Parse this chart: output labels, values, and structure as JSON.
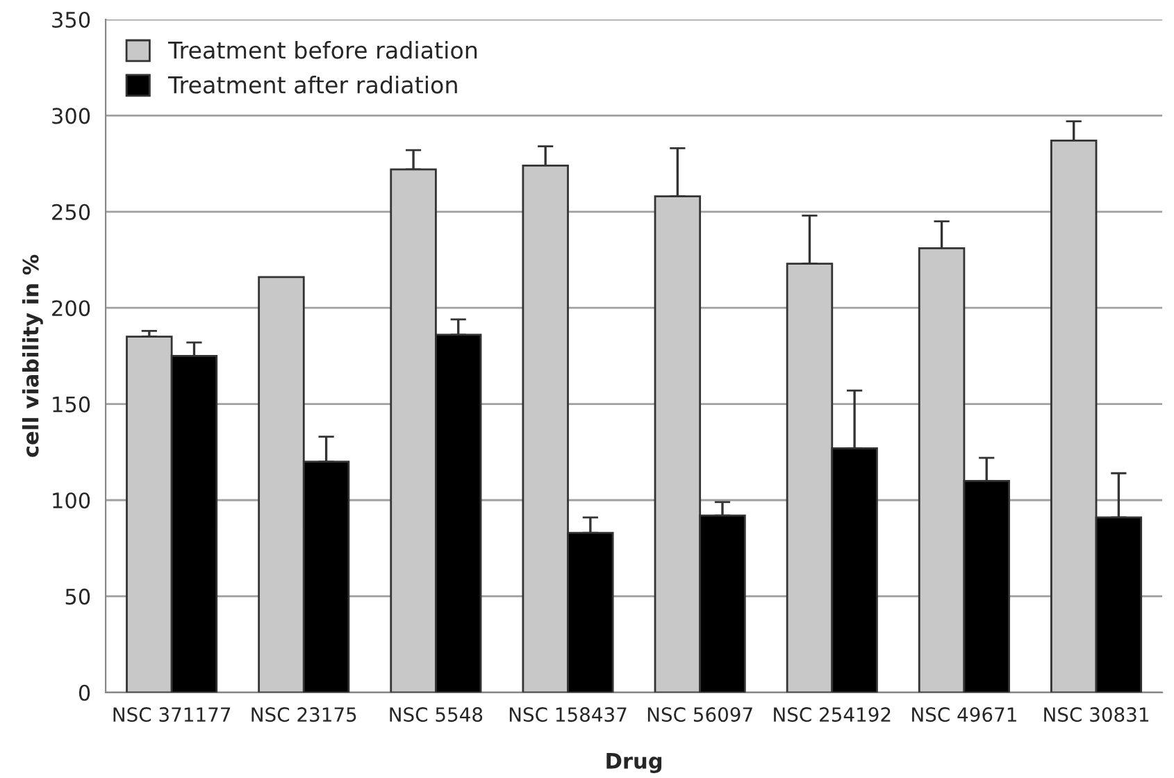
{
  "chart_data": {
    "type": "bar",
    "xlabel": "Drug",
    "ylabel": "cell viability in %",
    "categories": [
      "NSC 371177",
      "NSC 23175",
      "NSC 5548",
      "NSC 158437",
      "NSC 56097",
      "NSC 254192",
      "NSC 49671",
      "NSC 30831"
    ],
    "series": [
      {
        "name": "Treatment before radiation",
        "color": "#c8c8c8",
        "values": [
          185,
          216,
          272,
          274,
          258,
          223,
          231,
          287
        ],
        "errors": [
          [
            185,
            188
          ],
          null,
          [
            272,
            282
          ],
          [
            274,
            284
          ],
          [
            258,
            283
          ],
          [
            223,
            248
          ],
          [
            231,
            245
          ],
          [
            287,
            297
          ]
        ]
      },
      {
        "name": "Treatment after radiation",
        "color": "#000000",
        "values": [
          175,
          120,
          186,
          83,
          92,
          127,
          110,
          91
        ],
        "errors": [
          [
            175,
            182
          ],
          [
            120,
            133
          ],
          [
            186,
            194
          ],
          [
            83,
            91
          ],
          [
            92,
            99
          ],
          [
            127,
            157
          ],
          [
            110,
            122
          ],
          [
            91,
            114
          ]
        ]
      }
    ],
    "ylim": [
      0,
      350
    ],
    "yticks": [
      0,
      50,
      100,
      150,
      200,
      250,
      300,
      350
    ],
    "grid": "y",
    "legend": "top left"
  }
}
